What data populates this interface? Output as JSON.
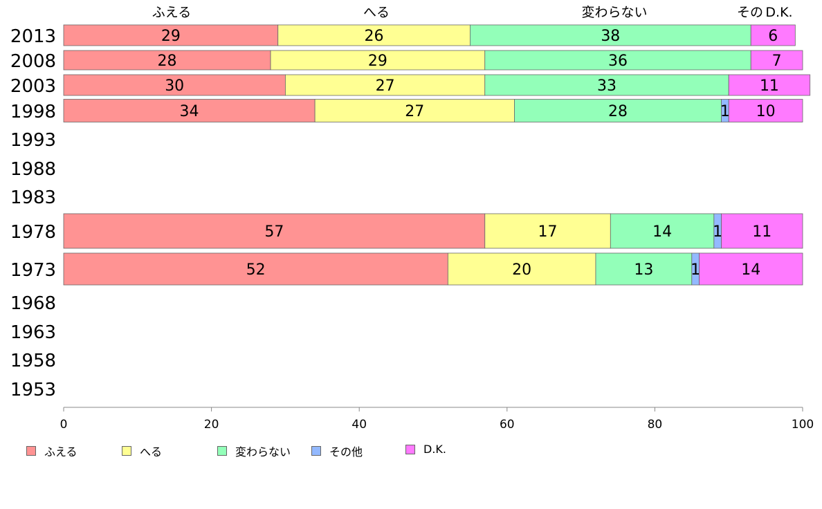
{
  "chart_data": {
    "type": "bar",
    "orientation": "horizontal",
    "stacked": true,
    "xlim": [
      0,
      100
    ],
    "xticks": [
      0,
      20,
      40,
      60,
      80,
      100
    ],
    "top_labels": [
      "ふえる",
      "へる",
      "変わらない",
      "その",
      "D.K."
    ],
    "categories": [
      "2013",
      "2008",
      "2003",
      "1998",
      "1993",
      "1988",
      "1983",
      "1978",
      "1973",
      "1968",
      "1963",
      "1958",
      "1953"
    ],
    "series": [
      {
        "name": "ふえる",
        "color": "#ff9393",
        "values": [
          29,
          28,
          30,
          34,
          null,
          null,
          null,
          57,
          52,
          null,
          null,
          null,
          null
        ]
      },
      {
        "name": "へる",
        "color": "#ffff93",
        "values": [
          26,
          29,
          27,
          27,
          null,
          null,
          null,
          17,
          20,
          null,
          null,
          null,
          null
        ]
      },
      {
        "name": "変わらない",
        "color": "#93ffb9",
        "values": [
          38,
          36,
          33,
          28,
          null,
          null,
          null,
          14,
          13,
          null,
          null,
          null,
          null
        ]
      },
      {
        "name": "その他",
        "color": "#93b9ff",
        "values": [
          0,
          0,
          0,
          1,
          null,
          null,
          null,
          1,
          1,
          null,
          null,
          null,
          null
        ]
      },
      {
        "name": "D.K.",
        "color": "#ff7aff",
        "values": [
          6,
          7,
          11,
          10,
          null,
          null,
          null,
          11,
          14,
          null,
          null,
          null,
          null
        ]
      }
    ],
    "legend_position": "bottom-left"
  },
  "legend": [
    {
      "label": "ふえる",
      "color": "#ff9393"
    },
    {
      "label": "へる",
      "color": "#ffff93"
    },
    {
      "label": "変わらない",
      "color": "#93ffb9"
    },
    {
      "label": "その他",
      "color": "#93b9ff"
    },
    {
      "label": "D.K.",
      "color": "#ff7aff"
    }
  ]
}
